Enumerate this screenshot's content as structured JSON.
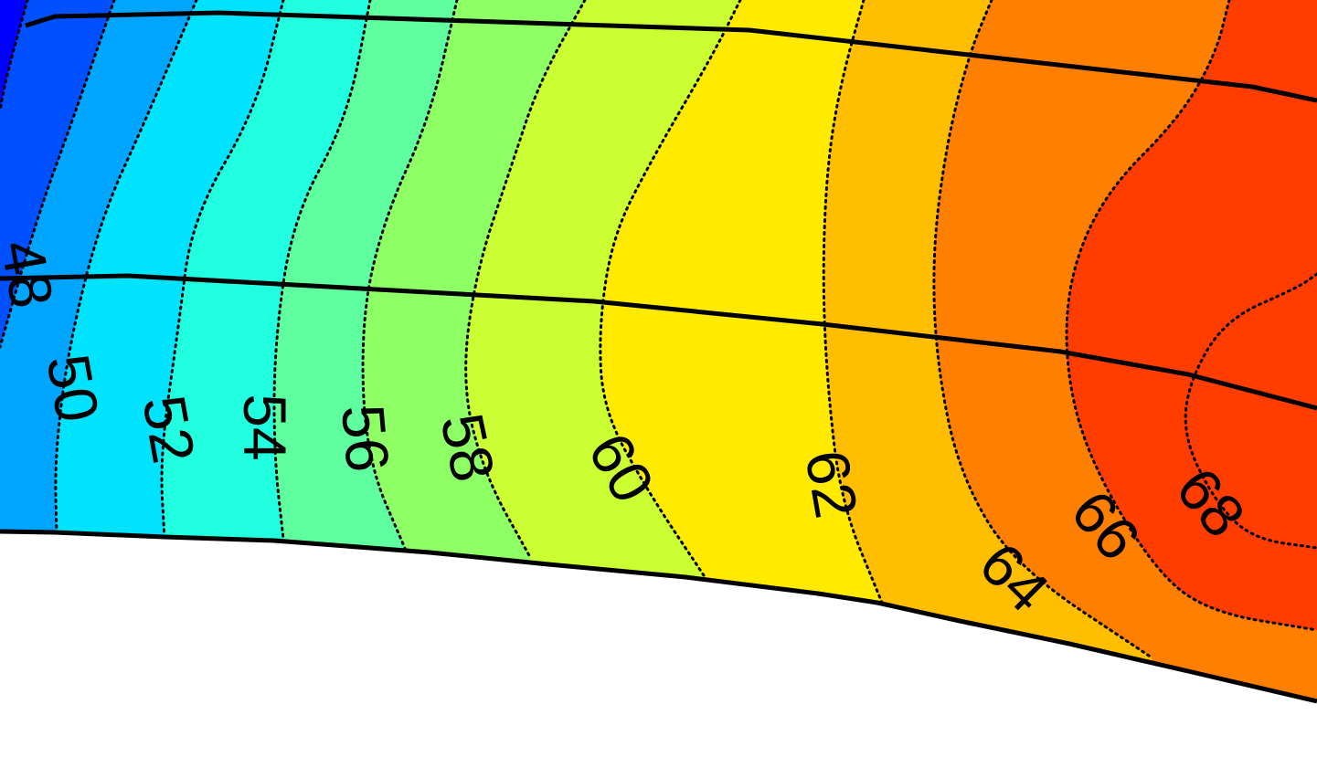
{
  "chart_data": {
    "type": "contour",
    "title": "",
    "xlabel": "",
    "ylabel": "",
    "colormap": "jet",
    "grid": false,
    "legend": "none",
    "contour_levels": [
      48,
      50,
      52,
      54,
      56,
      58,
      60,
      62,
      64,
      66,
      68
    ],
    "level_labels": [
      "48",
      "50",
      "52",
      "54",
      "56",
      "58",
      "60",
      "62",
      "64",
      "66",
      "68"
    ],
    "band_colors": [
      "#0000ff",
      "#0050ff",
      "#00a5ff",
      "#00e3ff",
      "#22ffe0",
      "#5fffa0",
      "#8fff66",
      "#ccff33",
      "#ffea00",
      "#ffbf00",
      "#ff7f00",
      "#ff3d00"
    ],
    "boundary_color": "#000000",
    "line_style": "dotted"
  }
}
